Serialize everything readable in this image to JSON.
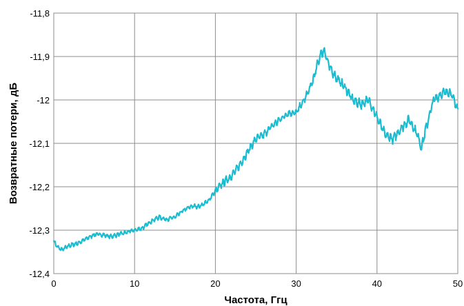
{
  "chart_data": {
    "type": "line",
    "title": "",
    "xlabel": "Частота, Ггц",
    "ylabel": "Возвратные потери, дБ",
    "xlim": [
      0,
      50
    ],
    "ylim": [
      -12.4,
      -11.8
    ],
    "x_ticks": [
      0,
      10,
      20,
      30,
      40,
      50
    ],
    "y_ticks": [
      -12.4,
      -12.3,
      -12.2,
      -12.1,
      -12.0,
      -11.9,
      -11.8
    ],
    "x_tick_labels": [
      "0",
      "10",
      "20",
      "30",
      "40",
      "50"
    ],
    "y_tick_labels": [
      "-12,4",
      "-12,3",
      "-12,2",
      "-12,1",
      "-12",
      "-11,9",
      "-11,8"
    ],
    "grid": {
      "x": true,
      "y": true
    },
    "line_color": "#1bbccf",
    "series": [
      {
        "x": [
          0,
          0.5,
          1,
          2,
          3,
          4,
          5,
          6,
          7,
          8,
          9,
          10,
          11,
          12,
          13,
          14,
          15,
          16,
          17,
          18,
          19,
          20,
          21,
          22,
          23,
          24,
          25,
          26,
          27,
          28,
          29,
          30,
          31,
          32,
          33,
          33.5,
          34,
          35,
          36,
          37,
          38,
          39,
          40,
          41,
          42,
          43,
          44,
          45,
          45.5,
          46,
          47,
          48,
          49,
          50
        ],
        "y": [
          -12.325,
          -12.34,
          -12.345,
          -12.335,
          -12.33,
          -12.32,
          -12.31,
          -12.31,
          -12.315,
          -12.31,
          -12.305,
          -12.3,
          -12.295,
          -12.28,
          -12.27,
          -12.275,
          -12.27,
          -12.255,
          -12.245,
          -12.245,
          -12.235,
          -12.21,
          -12.19,
          -12.175,
          -12.15,
          -12.12,
          -12.09,
          -12.08,
          -12.06,
          -12.045,
          -12.03,
          -12.03,
          -12.0,
          -11.96,
          -11.895,
          -11.885,
          -11.92,
          -11.95,
          -11.97,
          -12.0,
          -12.01,
          -12.0,
          -12.04,
          -12.08,
          -12.09,
          -12.065,
          -12.045,
          -12.08,
          -12.11,
          -12.07,
          -12.0,
          -11.985,
          -11.98,
          -12.02
        ]
      }
    ]
  }
}
